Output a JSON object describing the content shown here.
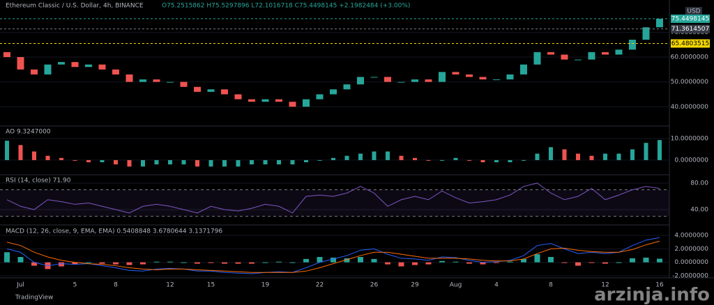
{
  "header": {
    "symbol": "Ethereum Classic / U.S. Dollar, 4h, BINANCE",
    "ohlc": "O75.2515862 H75.5297896 L72.1016718 C75.4498145 +2.1982484 (+3.00%)",
    "currency": "USD",
    "brand": "TradingView",
    "watermark": "arzinja.info"
  },
  "chart_data": [
    {
      "type": "candlestick",
      "ylim": [
        32.5,
        83
      ],
      "yticks": [
        {
          "value": 70,
          "label": "70.0000000"
        },
        {
          "value": 60,
          "label": "60.0000000"
        },
        {
          "value": 50,
          "label": "50.0000000"
        },
        {
          "value": 40,
          "label": "40.0000000"
        }
      ],
      "categories": [
        null,
        "Jul",
        null,
        null,
        null,
        "5",
        null,
        null,
        "8",
        null,
        null,
        null,
        "12",
        null,
        null,
        "15",
        null,
        null,
        null,
        "19",
        null,
        null,
        null,
        "22",
        null,
        null,
        null,
        "26",
        null,
        null,
        "29",
        null,
        null,
        "Aug",
        null,
        null,
        "4",
        null,
        null,
        null,
        "8",
        null,
        null,
        null,
        "12",
        null,
        null,
        null,
        "16"
      ],
      "open": [
        62,
        60,
        55,
        53,
        57,
        58,
        56,
        57,
        55,
        53,
        50,
        51,
        50,
        50,
        48,
        46,
        47,
        45,
        43,
        42,
        43,
        42,
        40,
        43,
        45,
        47,
        49,
        52,
        52,
        50,
        50,
        51,
        50,
        54,
        53,
        52,
        51,
        51,
        53,
        57,
        62,
        61,
        59,
        59,
        62,
        61,
        63,
        67,
        72
      ],
      "close": [
        60,
        55,
        53,
        57,
        58,
        56,
        57,
        55,
        53,
        50,
        51,
        50,
        50,
        48,
        46,
        47,
        45,
        43,
        42,
        43,
        42,
        40,
        43,
        45,
        47,
        49,
        52,
        52,
        50,
        50,
        51,
        50,
        54,
        53,
        52,
        51,
        51,
        53,
        57,
        62,
        61,
        59,
        59,
        62,
        61,
        63,
        67,
        72,
        75.4498145
      ],
      "up_color": "#26a69a",
      "down_color": "#ef5350",
      "price_lines": [
        {
          "value": 75.4498145,
          "label": "75.4498145",
          "color": "#26a69a"
        },
        {
          "value": 71.3614507,
          "label": "71.3614507",
          "color": "#363a45"
        },
        {
          "value": 65.4803515,
          "label": "65.4803515",
          "color": "#f5d800"
        }
      ]
    },
    {
      "type": "bar",
      "legend": "AO 9.3247000",
      "ylim": [
        -6.5,
        15.5
      ],
      "yticks": [
        {
          "value": 10,
          "label": "10.0000000"
        },
        {
          "value": 0,
          "label": "0.0000000"
        }
      ],
      "values": [
        9,
        7,
        4,
        2,
        1,
        0,
        -1,
        -1,
        -2,
        -3,
        -3,
        -2,
        -2,
        -2,
        -3,
        -3,
        -3,
        -3,
        -2,
        -2,
        -2,
        -2,
        -1,
        0,
        1,
        2,
        3,
        4,
        4,
        2,
        1,
        0,
        0,
        1,
        0,
        -1,
        -1,
        -1,
        0,
        3,
        6,
        5,
        3,
        2,
        3,
        3,
        5,
        8,
        9.3
      ],
      "up_color": "#26a69a",
      "down_color": "#ef5350"
    },
    {
      "type": "line",
      "legend": "RSI (14, close) 71.90",
      "ylim": [
        18,
        91.5
      ],
      "yticks": [
        {
          "value": 80,
          "label": "80.00"
        },
        {
          "value": 40,
          "label": "40.00"
        }
      ],
      "bands": [
        30,
        70
      ],
      "color": "#7e57c2",
      "values": [
        55,
        45,
        40,
        55,
        52,
        48,
        50,
        45,
        40,
        35,
        45,
        48,
        45,
        40,
        35,
        45,
        40,
        38,
        42,
        48,
        45,
        35,
        60,
        62,
        60,
        65,
        75,
        65,
        45,
        55,
        60,
        55,
        68,
        58,
        50,
        52,
        55,
        62,
        75,
        80,
        65,
        55,
        60,
        72,
        55,
        62,
        70,
        75,
        71.9
      ]
    },
    {
      "type": "macd",
      "legend": "MACD (12, 26, close, 9, EMA, EMA) 0.5408848 3.6780644 3.1371796",
      "ylim": [
        -2.2,
        5.35
      ],
      "yticks": [
        {
          "value": 4,
          "label": "4.0000000"
        },
        {
          "value": 2,
          "label": "2.0000000"
        },
        {
          "value": 0,
          "label": "0.0000000"
        },
        {
          "value": -2,
          "label": "-2.0000000"
        }
      ],
      "histogram": [
        1.5,
        0.8,
        -0.5,
        -1,
        -0.6,
        -0.3,
        0,
        -0.2,
        -0.3,
        -0.4,
        -0.3,
        0.1,
        0.1,
        0,
        -0.2,
        -0.1,
        -0.2,
        -0.2,
        -0.2,
        0,
        0.1,
        0,
        0.5,
        0.8,
        0.7,
        0.6,
        0.8,
        0.5,
        -0.3,
        -0.6,
        -0.4,
        -0.3,
        0.2,
        0.1,
        -0.2,
        -0.3,
        -0.1,
        0.1,
        0.5,
        1.2,
        0.8,
        -0.1,
        -0.5,
        -0.1,
        -0.2,
        0,
        0.6,
        0.7,
        0.54
      ],
      "series": [
        {
          "name": "MACD",
          "color": "#2962ff",
          "values": [
            2,
            1.5,
            0,
            -0.5,
            -0.2,
            -0.3,
            -0.2,
            -0.5,
            -0.8,
            -1.2,
            -1.3,
            -1,
            -0.9,
            -1,
            -1.3,
            -1.3,
            -1.5,
            -1.6,
            -1.7,
            -1.5,
            -1.4,
            -1.5,
            -0.8,
            0,
            0.5,
            1,
            1.8,
            2,
            1.2,
            0.6,
            0.5,
            0.3,
            0.8,
            0.7,
            0.3,
            0,
            0.1,
            0.3,
            1,
            2.5,
            2.8,
            2,
            1.3,
            1.5,
            1.3,
            1.5,
            2.5,
            3.3,
            3.68
          ]
        },
        {
          "name": "Signal",
          "color": "#ff6d00",
          "values": [
            3,
            2.5,
            1.5,
            0.8,
            0.3,
            0,
            -0.2,
            -0.3,
            -0.5,
            -0.8,
            -1,
            -1.1,
            -1,
            -1,
            -1.1,
            -1.2,
            -1.3,
            -1.4,
            -1.5,
            -1.5,
            -1.5,
            -1.5,
            -1.3,
            -0.8,
            -0.2,
            0.4,
            1,
            1.5,
            1.5,
            1.2,
            0.9,
            0.6,
            0.6,
            0.6,
            0.5,
            0.3,
            0.2,
            0.2,
            0.5,
            1.3,
            2,
            2.1,
            1.8,
            1.6,
            1.5,
            1.5,
            1.9,
            2.6,
            3.14
          ]
        }
      ],
      "up_color": "#26a69a",
      "down_color": "#ef5350"
    }
  ]
}
